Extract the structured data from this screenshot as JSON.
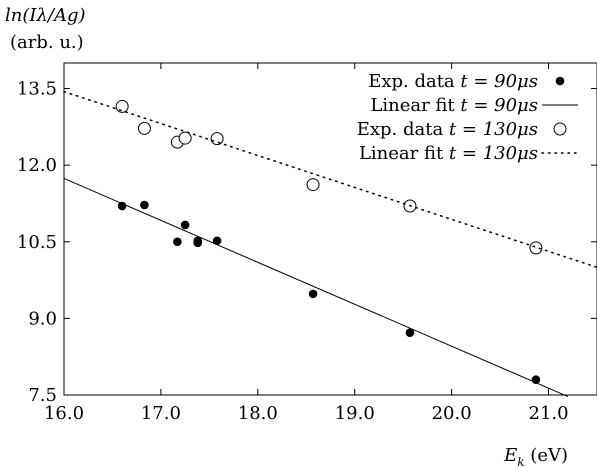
{
  "chart_data": {
    "type": "scatter",
    "ylabel_line1": "ln(Iλ/Ag)",
    "ylabel_line2": "(arb. u.)",
    "xlabel_main": "E",
    "xlabel_sub": "k",
    "xlabel_unit": " (eV)",
    "xlim": [
      16.0,
      21.5
    ],
    "ylim": [
      7.5,
      14.0
    ],
    "x_ticks": [
      16.0,
      17.0,
      18.0,
      19.0,
      20.0,
      21.0
    ],
    "x_tick_labels": [
      "16.0",
      "17.0",
      "18.0",
      "19.0",
      "20.0",
      "21.0"
    ],
    "y_ticks": [
      7.5,
      9.0,
      10.5,
      12.0,
      13.5
    ],
    "y_tick_labels": [
      "7.5",
      "9.0",
      "10.5",
      "12.0",
      "13.5"
    ],
    "grid": false,
    "legend_position": "top-right",
    "series": [
      {
        "name": "Exp. data t = 90μs",
        "legend_prefix": "Exp. data ",
        "legend_math": "t = 90μs",
        "kind": "points",
        "marker": "filled-circle",
        "x": [
          16.6,
          16.83,
          17.17,
          17.25,
          17.38,
          17.38,
          17.58,
          18.57,
          19.57,
          20.87
        ],
        "y": [
          11.2,
          11.22,
          10.5,
          10.83,
          10.52,
          10.48,
          10.52,
          9.48,
          8.72,
          7.8
        ]
      },
      {
        "name": "Linear fit t = 90μs",
        "legend_prefix": "Linear fit ",
        "legend_math": "t = 90μs",
        "kind": "line",
        "style": "solid",
        "x": [
          16.0,
          21.2
        ],
        "y": [
          11.74,
          7.47
        ]
      },
      {
        "name": "Exp. data t = 130μs",
        "legend_prefix": "Exp. data ",
        "legend_math": "t = 130μs",
        "kind": "points",
        "marker": "open-circle",
        "x": [
          16.6,
          16.83,
          17.17,
          17.25,
          17.58,
          18.57,
          19.57,
          20.87
        ],
        "y": [
          13.15,
          12.72,
          12.45,
          12.53,
          12.52,
          11.62,
          11.2,
          10.38
        ]
      },
      {
        "name": "Linear fit t = 130μs",
        "legend_prefix": "Linear fit ",
        "legend_math": "t = 130μs",
        "kind": "line",
        "style": "dotted",
        "x": [
          16.0,
          21.5
        ],
        "y": [
          13.44,
          10.0
        ]
      }
    ]
  }
}
